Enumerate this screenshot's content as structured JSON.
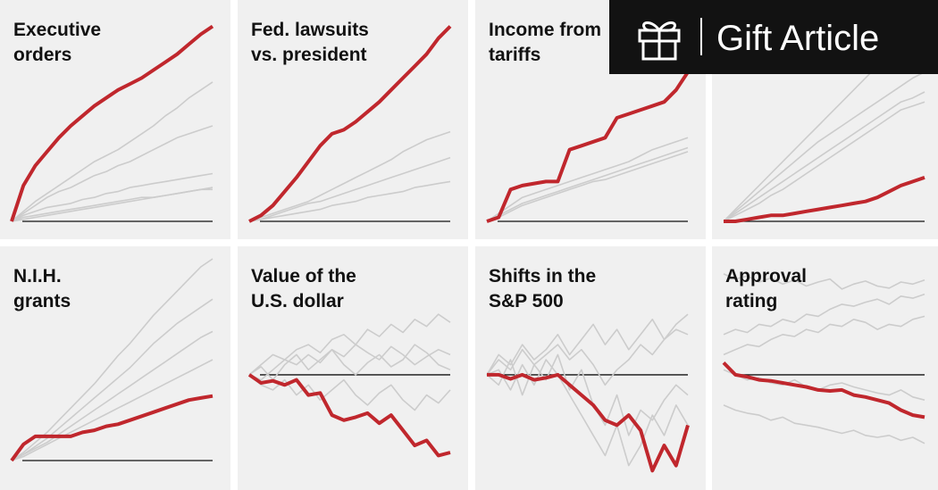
{
  "chart_data": [
    {
      "type": "line",
      "title": [
        "Executive",
        "orders"
      ],
      "ylim": [
        0,
        100
      ],
      "series": [
        {
          "color": "#cccccc",
          "values": [
            0,
            2,
            3,
            4,
            5,
            6,
            7,
            8,
            9,
            10,
            11,
            12,
            12,
            13,
            14,
            15,
            16,
            17
          ]
        },
        {
          "color": "#cccccc",
          "values": [
            0,
            5,
            10,
            14,
            18,
            22,
            26,
            30,
            33,
            36,
            40,
            44,
            48,
            53,
            57,
            62,
            66,
            70
          ]
        },
        {
          "color": "#cccccc",
          "values": [
            0,
            4,
            8,
            12,
            15,
            17,
            20,
            23,
            25,
            28,
            30,
            33,
            36,
            39,
            42,
            44,
            46,
            48
          ]
        },
        {
          "color": "#cccccc",
          "values": [
            0,
            1,
            2,
            3,
            4,
            5,
            6,
            7,
            8,
            9,
            10,
            11,
            12,
            13,
            14,
            15,
            16,
            16
          ]
        },
        {
          "color": "#cccccc",
          "values": [
            0,
            3,
            5,
            7,
            8,
            9,
            11,
            12,
            14,
            15,
            17,
            18,
            19,
            20,
            21,
            22,
            23,
            24
          ]
        },
        {
          "color": "#c0272d",
          "values": [
            0,
            18,
            28,
            35,
            42,
            48,
            53,
            58,
            62,
            66,
            69,
            72,
            76,
            80,
            84,
            89,
            94,
            98
          ]
        }
      ]
    },
    {
      "type": "line",
      "title": [
        "Fed. lawsuits",
        "vs. president"
      ],
      "ylim": [
        0,
        100
      ],
      "series": [
        {
          "color": "#cccccc",
          "values": [
            0,
            2,
            4,
            6,
            8,
            10,
            13,
            16,
            19,
            22,
            25,
            28,
            31,
            35,
            38,
            41,
            43,
            45
          ]
        },
        {
          "color": "#cccccc",
          "values": [
            0,
            1,
            3,
            5,
            7,
            9,
            10,
            12,
            14,
            16,
            18,
            20,
            22,
            24,
            26,
            28,
            30,
            32
          ]
        },
        {
          "color": "#cccccc",
          "values": [
            0,
            1,
            2,
            3,
            4,
            5,
            6,
            8,
            9,
            10,
            12,
            13,
            14,
            15,
            17,
            18,
            19,
            20
          ]
        },
        {
          "color": "#c0272d",
          "values": [
            0,
            3,
            8,
            15,
            22,
            30,
            38,
            44,
            46,
            50,
            55,
            60,
            66,
            72,
            78,
            84,
            92,
            98
          ]
        }
      ]
    },
    {
      "type": "line",
      "title": [
        "Income from",
        "tariffs"
      ],
      "ylim": [
        0,
        100
      ],
      "series": [
        {
          "color": "#cccccc",
          "values": [
            0,
            4,
            8,
            12,
            14,
            16,
            18,
            20,
            22,
            24,
            26,
            28,
            30,
            33,
            36,
            38,
            40,
            42
          ]
        },
        {
          "color": "#cccccc",
          "values": [
            0,
            3,
            6,
            9,
            11,
            13,
            15,
            17,
            19,
            21,
            23,
            25,
            27,
            29,
            31,
            33,
            35,
            37
          ]
        },
        {
          "color": "#cccccc",
          "values": [
            0,
            2,
            5,
            8,
            10,
            12,
            14,
            16,
            18,
            20,
            21,
            23,
            25,
            27,
            29,
            31,
            33,
            35
          ]
        },
        {
          "color": "#c0272d",
          "values": [
            0,
            2,
            16,
            18,
            19,
            20,
            20,
            36,
            38,
            40,
            42,
            52,
            54,
            56,
            58,
            60,
            66,
            75
          ]
        }
      ]
    },
    {
      "type": "line",
      "ylim": [
        0,
        100
      ],
      "series": [
        {
          "color": "#cccccc",
          "values": [
            0,
            6,
            12,
            18,
            24,
            30,
            36,
            42,
            48,
            54,
            60,
            66,
            72,
            78,
            84,
            88,
            92,
            95
          ]
        },
        {
          "color": "#cccccc",
          "values": [
            0,
            5,
            10,
            15,
            20,
            25,
            30,
            35,
            40,
            44,
            48,
            52,
            56,
            60,
            64,
            68,
            72,
            75
          ]
        },
        {
          "color": "#cccccc",
          "values": [
            0,
            4,
            8,
            12,
            16,
            20,
            24,
            28,
            32,
            36,
            40,
            44,
            48,
            52,
            56,
            60,
            62,
            65
          ]
        },
        {
          "color": "#cccccc",
          "values": [
            0,
            3,
            6,
            9,
            13,
            16,
            20,
            24,
            28,
            32,
            36,
            40,
            44,
            48,
            52,
            56,
            58,
            60
          ]
        },
        {
          "color": "#c0272d",
          "values": [
            0,
            0,
            1,
            2,
            3,
            3,
            4,
            5,
            6,
            7,
            8,
            9,
            10,
            12,
            15,
            18,
            20,
            22
          ]
        }
      ]
    },
    {
      "type": "line",
      "title": [
        "N.I.H.",
        "grants"
      ],
      "ylim": [
        0,
        100
      ],
      "series": [
        {
          "color": "#cccccc",
          "values": [
            0,
            4,
            9,
            14,
            20,
            26,
            32,
            38,
            45,
            52,
            58,
            65,
            72,
            78,
            84,
            90,
            96,
            100
          ]
        },
        {
          "color": "#cccccc",
          "values": [
            0,
            3,
            7,
            11,
            16,
            21,
            26,
            31,
            36,
            41,
            46,
            52,
            58,
            63,
            68,
            72,
            76,
            80
          ]
        },
        {
          "color": "#cccccc",
          "values": [
            0,
            3,
            6,
            9,
            13,
            17,
            21,
            25,
            29,
            33,
            37,
            41,
            45,
            49,
            53,
            57,
            61,
            64
          ]
        },
        {
          "color": "#cccccc",
          "values": [
            0,
            2,
            5,
            8,
            11,
            14,
            17,
            20,
            23,
            26,
            29,
            32,
            35,
            38,
            41,
            44,
            47,
            50
          ]
        },
        {
          "color": "#c0272d",
          "values": [
            0,
            8,
            12,
            12,
            12,
            12,
            14,
            15,
            17,
            18,
            20,
            22,
            24,
            26,
            28,
            30,
            31,
            32
          ]
        }
      ]
    },
    {
      "type": "line",
      "title": [
        "Value of the",
        "U.S. dollar"
      ],
      "ylim": [
        -85,
        115
      ],
      "series": [
        {
          "color": "#cccccc",
          "values": [
            0,
            10,
            20,
            15,
            25,
            30,
            22,
            35,
            40,
            30,
            45,
            38,
            50,
            42,
            55,
            48,
            60,
            52
          ]
        },
        {
          "color": "#cccccc",
          "values": [
            0,
            -5,
            5,
            15,
            10,
            20,
            12,
            25,
            18,
            30,
            22,
            15,
            28,
            20,
            10,
            18,
            25,
            20
          ]
        },
        {
          "color": "#cccccc",
          "values": [
            0,
            8,
            -5,
            10,
            20,
            5,
            15,
            25,
            10,
            0,
            12,
            20,
            8,
            15,
            30,
            22,
            10,
            5
          ]
        },
        {
          "color": "#cccccc",
          "values": [
            0,
            -10,
            -15,
            -5,
            -20,
            -10,
            -25,
            -15,
            -5,
            -20,
            -30,
            -18,
            -10,
            -25,
            -35,
            -20,
            -28,
            -15
          ]
        },
        {
          "color": "#c0272d",
          "values": [
            0,
            -8,
            -6,
            -10,
            -5,
            -20,
            -18,
            -40,
            -45,
            -42,
            -38,
            -48,
            -40,
            -55,
            -70,
            -65,
            -80,
            -77
          ]
        }
      ]
    },
    {
      "type": "line",
      "title": [
        "Shifts in the",
        "S&P 500"
      ],
      "ylim": [
        -85,
        115
      ],
      "series": [
        {
          "color": "#cccccc",
          "values": [
            0,
            20,
            10,
            30,
            15,
            25,
            40,
            20,
            35,
            50,
            30,
            45,
            25,
            40,
            55,
            35,
            50,
            60
          ]
        },
        {
          "color": "#cccccc",
          "values": [
            0,
            -10,
            15,
            -20,
            10,
            -5,
            20,
            -15,
            5,
            -30,
            -50,
            -20,
            -60,
            -35,
            -45,
            -25,
            -10,
            -20
          ]
        },
        {
          "color": "#cccccc",
          "values": [
            0,
            5,
            -15,
            10,
            -10,
            15,
            0,
            -20,
            -40,
            -60,
            -80,
            -50,
            -90,
            -70,
            -40,
            -60,
            -30,
            -50
          ]
        },
        {
          "color": "#cccccc",
          "values": [
            0,
            15,
            5,
            25,
            10,
            20,
            30,
            15,
            25,
            10,
            -10,
            5,
            15,
            30,
            20,
            35,
            45,
            40
          ]
        },
        {
          "color": "#c0272d",
          "values": [
            0,
            0,
            -4,
            0,
            -5,
            -3,
            0,
            -10,
            -20,
            -30,
            -45,
            -50,
            -40,
            -55,
            -95,
            -70,
            -90,
            -50
          ]
        }
      ]
    },
    {
      "type": "line",
      "title": [
        "Approval",
        "rating"
      ],
      "ylim": [
        -85,
        115
      ],
      "series": [
        {
          "color": "#cccccc",
          "values": [
            100,
            95,
            98,
            92,
            96,
            90,
            94,
            88,
            92,
            95,
            85,
            90,
            93,
            88,
            86,
            92,
            90,
            94
          ]
        },
        {
          "color": "#cccccc",
          "values": [
            40,
            45,
            42,
            50,
            48,
            55,
            52,
            60,
            58,
            65,
            70,
            68,
            72,
            75,
            70,
            78,
            76,
            80
          ]
        },
        {
          "color": "#cccccc",
          "values": [
            20,
            25,
            30,
            28,
            35,
            40,
            38,
            45,
            42,
            50,
            48,
            55,
            52,
            45,
            50,
            48,
            55,
            58
          ]
        },
        {
          "color": "#cccccc",
          "values": [
            -30,
            -35,
            -38,
            -40,
            -45,
            -42,
            -48,
            -50,
            -52,
            -55,
            -58,
            -55,
            -60,
            -62,
            -60,
            -65,
            -62,
            -68
          ]
        },
        {
          "color": "#cccccc",
          "values": [
            5,
            0,
            -5,
            -3,
            -8,
            -10,
            -5,
            -12,
            -15,
            -10,
            -8,
            -12,
            -15,
            -18,
            -20,
            -15,
            -22,
            -25
          ]
        },
        {
          "color": "#c0272d",
          "values": [
            12,
            0,
            -2,
            -5,
            -6,
            -8,
            -10,
            -12,
            -15,
            -16,
            -15,
            -20,
            -22,
            -25,
            -28,
            -35,
            -40,
            -42
          ]
        }
      ]
    }
  ],
  "gift_button": {
    "label": "Gift Article"
  }
}
